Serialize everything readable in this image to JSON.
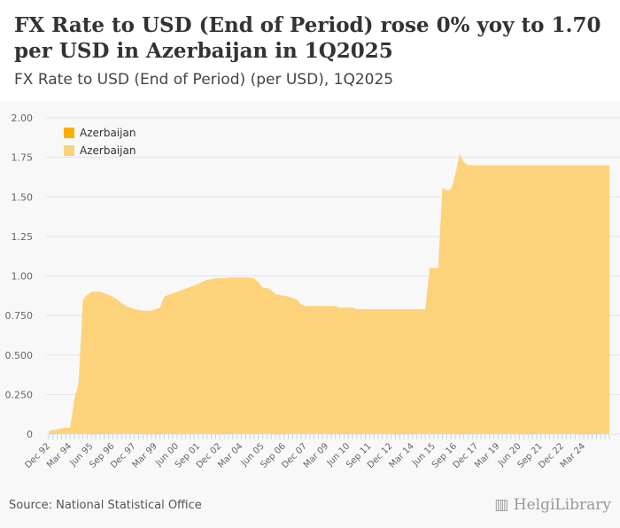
{
  "header": {
    "title": "FX Rate to USD (End of Period) rose 0% yoy to 1.70 per USD in Azerbaijan in 1Q2025",
    "subtitle": "FX Rate to USD (End of Period) (per USD), 1Q2025"
  },
  "footer": {
    "source": "Source: National Statistical Office",
    "logo": "HelgiLibrary"
  },
  "chart_data": {
    "type": "area",
    "title": "FX Rate to USD (End of Period) (per USD), 1Q2025",
    "xlabel": "",
    "ylabel": "",
    "ylim": [
      0,
      2
    ],
    "yticks": [
      "0",
      "0.250",
      "0.500",
      "0.750",
      "1.00",
      "1.25",
      "1.50",
      "1.75",
      "2.00"
    ],
    "ytick_values": [
      0,
      0.25,
      0.5,
      0.75,
      1,
      1.25,
      1.5,
      1.75,
      2
    ],
    "grid": true,
    "legend": [
      {
        "label": "Azerbaijan",
        "color": "#f9b000"
      },
      {
        "label": "Azerbaijan",
        "color": "#fcd37a"
      }
    ],
    "legend_placement": "top-left",
    "start_period": "Dec 92",
    "frequency": "quarterly",
    "xtick_labels": [
      "Dec 92",
      "Mar 94",
      "Jun 95",
      "Sep 96",
      "Dec 97",
      "Mar 99",
      "Jun 00",
      "Sep 01",
      "Dec 02",
      "Mar 04",
      "Jun 05",
      "Sep 06",
      "Dec 07",
      "Mar 09",
      "Jun 10",
      "Sep 11",
      "Dec 12",
      "Mar 14",
      "Jun 15",
      "Sep 16",
      "Dec 17",
      "Mar 19",
      "Jun 20",
      "Sep 21",
      "Dec 22",
      "Mar 24"
    ],
    "xtick_every": 5,
    "values": [
      0.02,
      0.025,
      0.03,
      0.035,
      0.04,
      0.04,
      0.22,
      0.33,
      0.85,
      0.88,
      0.9,
      0.9,
      0.9,
      0.89,
      0.88,
      0.87,
      0.85,
      0.83,
      0.81,
      0.8,
      0.79,
      0.785,
      0.78,
      0.78,
      0.78,
      0.79,
      0.8,
      0.87,
      0.88,
      0.89,
      0.9,
      0.91,
      0.92,
      0.93,
      0.94,
      0.95,
      0.965,
      0.975,
      0.98,
      0.985,
      0.985,
      0.985,
      0.99,
      0.99,
      0.99,
      0.99,
      0.99,
      0.99,
      0.985,
      0.96,
      0.925,
      0.925,
      0.91,
      0.885,
      0.88,
      0.875,
      0.87,
      0.86,
      0.85,
      0.82,
      0.81,
      0.81,
      0.81,
      0.81,
      0.81,
      0.81,
      0.81,
      0.81,
      0.8,
      0.8,
      0.8,
      0.8,
      0.79,
      0.79,
      0.79,
      0.79,
      0.79,
      0.79,
      0.79,
      0.79,
      0.79,
      0.79,
      0.79,
      0.79,
      0.79,
      0.79,
      0.79,
      0.79,
      0.79,
      1.05,
      1.05,
      1.05,
      1.56,
      1.54,
      1.55,
      1.64,
      1.77,
      1.72,
      1.7,
      1.7,
      1.7,
      1.7,
      1.7,
      1.7,
      1.7,
      1.7,
      1.7,
      1.7,
      1.7,
      1.7,
      1.7,
      1.7,
      1.7,
      1.7,
      1.7,
      1.7,
      1.7,
      1.7,
      1.7,
      1.7,
      1.7,
      1.7,
      1.7,
      1.7,
      1.7,
      1.7,
      1.7,
      1.7,
      1.7,
      1.7,
      1.7,
      1.7
    ]
  }
}
